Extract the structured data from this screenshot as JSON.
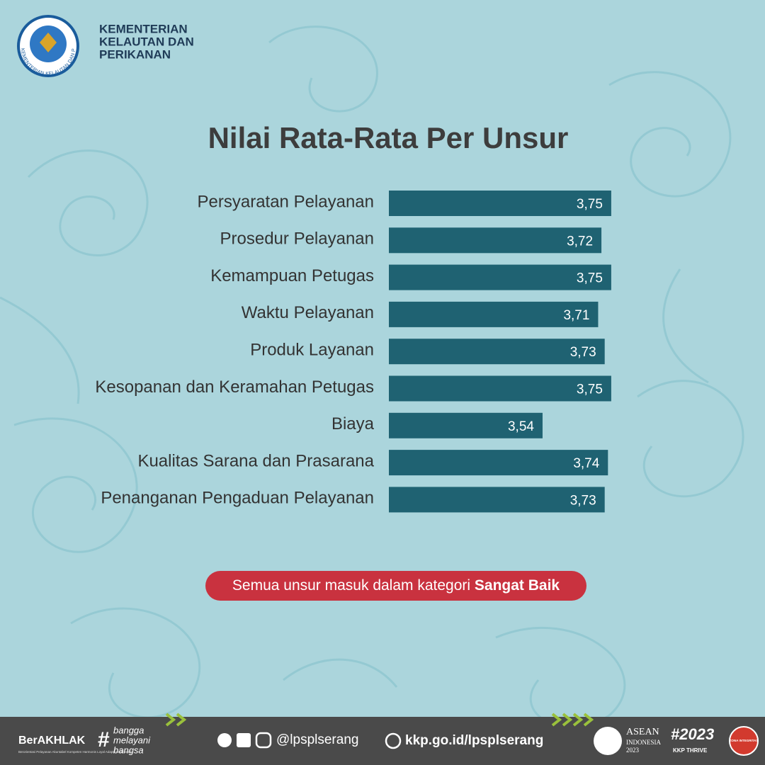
{
  "header": {
    "org_lines": [
      "KEMENTERIAN",
      "KELAUTAN DAN",
      "PERIKANAN"
    ],
    "logo_ring": "KEMENTERIAN KELAUTAN DAN PERIKANAN"
  },
  "chart_data": {
    "type": "bar",
    "orientation": "horizontal",
    "title": "Nilai Rata-Rata Per Unsur",
    "categories": [
      "Persyaratan Pelayanan",
      "Prosedur Pelayanan",
      "Kemampuan Petugas",
      "Waktu Pelayanan",
      "Produk Layanan",
      "Kesopanan dan Keramahan Petugas",
      "Biaya",
      "Kualitas Sarana dan Prasarana",
      "Penanganan Pengaduan Pelayanan"
    ],
    "values": [
      3.75,
      3.72,
      3.75,
      3.71,
      3.73,
      3.75,
      3.54,
      3.74,
      3.73
    ],
    "value_labels": [
      "3,75",
      "3,72",
      "3,75",
      "3,71",
      "3,73",
      "3,75",
      "3,54",
      "3,74",
      "3,73"
    ],
    "color": "#1f6272",
    "xlim": [
      3.07,
      3.8
    ]
  },
  "badge": {
    "text": "Semua unsur masuk dalam kategori ",
    "emphasis": "Sangat Baik"
  },
  "footer": {
    "brand": "BerAKHLAK",
    "brand_sub": "Berorientasi Pelayanan Akuntabel Kompeten Harmonis Loyal Adaptif Kolaboratif",
    "tagline": [
      "bangga",
      "melayani",
      "bangsa"
    ],
    "social": "@lpsplserang",
    "website": "kkp.go.id/lpsplserang",
    "asean": [
      "ASEAN",
      "INDONESIA",
      "2023"
    ],
    "thrive": [
      "#2023",
      "KKP THRIVE"
    ],
    "zona": "ZONA INTEGRITAS"
  }
}
